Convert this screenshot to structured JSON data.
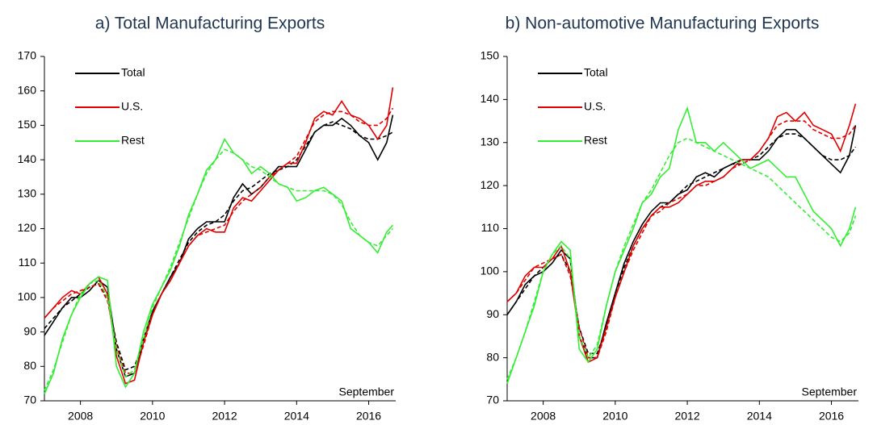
{
  "chart_data": [
    {
      "type": "line",
      "title": "a) Total Manufacturing Exports",
      "annotation": "September",
      "x": [
        2007,
        2007.25,
        2007.5,
        2007.75,
        2008,
        2008.25,
        2008.5,
        2008.75,
        2009,
        2009.25,
        2009.5,
        2009.75,
        2010,
        2010.25,
        2010.5,
        2010.75,
        2011,
        2011.25,
        2011.5,
        2011.75,
        2012,
        2012.25,
        2012.5,
        2012.75,
        2013,
        2013.25,
        2013.5,
        2013.75,
        2014,
        2014.25,
        2014.5,
        2014.75,
        2015,
        2015.25,
        2015.5,
        2015.75,
        2016,
        2016.25,
        2016.5,
        2016.67
      ],
      "xlim": [
        2007,
        2016.75
      ],
      "xticks": [
        2008,
        2010,
        2012,
        2014,
        2016
      ],
      "ylim": [
        70,
        170
      ],
      "yticks": [
        70,
        80,
        90,
        100,
        110,
        120,
        130,
        140,
        150,
        160,
        170
      ],
      "series": [
        {
          "name": "Total",
          "color": "#000000",
          "values": [
            89,
            93,
            97,
            100,
            100,
            102,
            105,
            103,
            85,
            77,
            78,
            88,
            96,
            101,
            106,
            110,
            117,
            120,
            122,
            122,
            122,
            129,
            133,
            130,
            132,
            135,
            138,
            138,
            138,
            143,
            148,
            150,
            150,
            152,
            150,
            147,
            145,
            140,
            145,
            153
          ],
          "trend_values": [
            91,
            94,
            97,
            99,
            101,
            103,
            104,
            100,
            87,
            79,
            80,
            87,
            95,
            101,
            106,
            111,
            116,
            119,
            121,
            122,
            124,
            128,
            131,
            132,
            134,
            136,
            137,
            138,
            140,
            144,
            148,
            150,
            151,
            150,
            149,
            147,
            146,
            146,
            147,
            148
          ]
        },
        {
          "name": "U.S.",
          "color": "#e00000",
          "values": [
            94,
            97,
            100,
            102,
            101,
            104,
            106,
            101,
            83,
            75,
            76,
            87,
            95,
            101,
            105,
            110,
            115,
            118,
            120,
            119,
            119,
            126,
            129,
            128,
            131,
            134,
            137,
            139,
            139,
            145,
            152,
            154,
            153,
            157,
            153,
            152,
            150,
            146,
            150,
            161
          ],
          "trend_values": [
            94,
            97,
            99,
            101,
            102,
            103,
            104,
            99,
            86,
            78,
            78,
            86,
            95,
            101,
            105,
            110,
            115,
            118,
            119,
            120,
            121,
            125,
            128,
            130,
            132,
            135,
            137,
            139,
            141,
            146,
            151,
            153,
            154,
            154,
            153,
            151,
            150,
            150,
            152,
            155
          ]
        },
        {
          "name": "Rest",
          "color": "#33ee33",
          "values": [
            72,
            78,
            88,
            95,
            100,
            104,
            106,
            105,
            80,
            74,
            78,
            90,
            98,
            103,
            108,
            115,
            124,
            130,
            137,
            140,
            146,
            142,
            140,
            136,
            138,
            136,
            133,
            132,
            128,
            129,
            131,
            132,
            130,
            128,
            120,
            118,
            116,
            113,
            119,
            121
          ],
          "trend_values": [
            73,
            79,
            87,
            95,
            101,
            104,
            105,
            100,
            85,
            77,
            79,
            88,
            97,
            103,
            109,
            116,
            123,
            130,
            136,
            140,
            143,
            142,
            140,
            138,
            137,
            135,
            133,
            132,
            131,
            131,
            131,
            131,
            130,
            127,
            122,
            118,
            116,
            115,
            118,
            120
          ]
        }
      ]
    },
    {
      "type": "line",
      "title": "b) Non-automotive Manufacturing Exports",
      "annotation": "September",
      "x": [
        2007,
        2007.25,
        2007.5,
        2007.75,
        2008,
        2008.25,
        2008.5,
        2008.75,
        2009,
        2009.25,
        2009.5,
        2009.75,
        2010,
        2010.25,
        2010.5,
        2010.75,
        2011,
        2011.25,
        2011.5,
        2011.75,
        2012,
        2012.25,
        2012.5,
        2012.75,
        2013,
        2013.25,
        2013.5,
        2013.75,
        2014,
        2014.25,
        2014.5,
        2014.75,
        2015,
        2015.25,
        2015.5,
        2015.75,
        2016,
        2016.25,
        2016.5,
        2016.67
      ],
      "xlim": [
        2007,
        2016.75
      ],
      "xticks": [
        2008,
        2010,
        2012,
        2014,
        2016
      ],
      "ylim": [
        70,
        150
      ],
      "yticks": [
        70,
        80,
        90,
        100,
        110,
        120,
        130,
        140,
        150
      ],
      "series": [
        {
          "name": "Total",
          "color": "#000000",
          "values": [
            90,
            93,
            97,
            99,
            100,
            102,
            105,
            103,
            85,
            80,
            80,
            88,
            95,
            102,
            107,
            111,
            114,
            116,
            116,
            118,
            119,
            122,
            123,
            122,
            124,
            125,
            126,
            126,
            126,
            128,
            131,
            133,
            133,
            131,
            129,
            127,
            125,
            123,
            127,
            134
          ],
          "trend_values": [
            90,
            93,
            96,
            99,
            101,
            103,
            104,
            100,
            87,
            81,
            81,
            87,
            95,
            101,
            106,
            110,
            113,
            115,
            116,
            118,
            120,
            121,
            122,
            123,
            124,
            125,
            125,
            126,
            127,
            129,
            131,
            132,
            132,
            131,
            129,
            127,
            126,
            126,
            127,
            129
          ]
        },
        {
          "name": "U.S.",
          "color": "#e00000",
          "values": [
            93,
            95,
            99,
            101,
            101,
            103,
            106,
            100,
            85,
            79,
            80,
            87,
            94,
            100,
            106,
            110,
            113,
            115,
            115,
            116,
            118,
            120,
            121,
            121,
            122,
            124,
            126,
            126,
            128,
            131,
            136,
            137,
            135,
            137,
            134,
            133,
            132,
            128,
            134,
            139
          ],
          "trend_values": [
            93,
            95,
            98,
            101,
            102,
            103,
            104,
            99,
            87,
            80,
            80,
            86,
            94,
            100,
            105,
            109,
            113,
            114,
            116,
            117,
            118,
            120,
            120,
            121,
            122,
            124,
            125,
            126,
            128,
            131,
            134,
            135,
            135,
            135,
            133,
            132,
            131,
            131,
            132,
            134
          ]
        },
        {
          "name": "Rest",
          "color": "#33ee33",
          "values": [
            74,
            80,
            86,
            92,
            100,
            104,
            107,
            105,
            82,
            79,
            82,
            92,
            100,
            105,
            110,
            116,
            118,
            122,
            124,
            133,
            138,
            130,
            130,
            128,
            130,
            128,
            126,
            124,
            125,
            126,
            124,
            122,
            122,
            118,
            114,
            112,
            110,
            106,
            110,
            115
          ],
          "trend_values": [
            75,
            80,
            86,
            93,
            100,
            104,
            106,
            103,
            85,
            80,
            83,
            92,
            100,
            106,
            111,
            116,
            119,
            123,
            127,
            130,
            131,
            130,
            129,
            128,
            127,
            126,
            125,
            124,
            123,
            122,
            120,
            118,
            116,
            114,
            112,
            110,
            108,
            107,
            109,
            113
          ]
        }
      ]
    }
  ]
}
